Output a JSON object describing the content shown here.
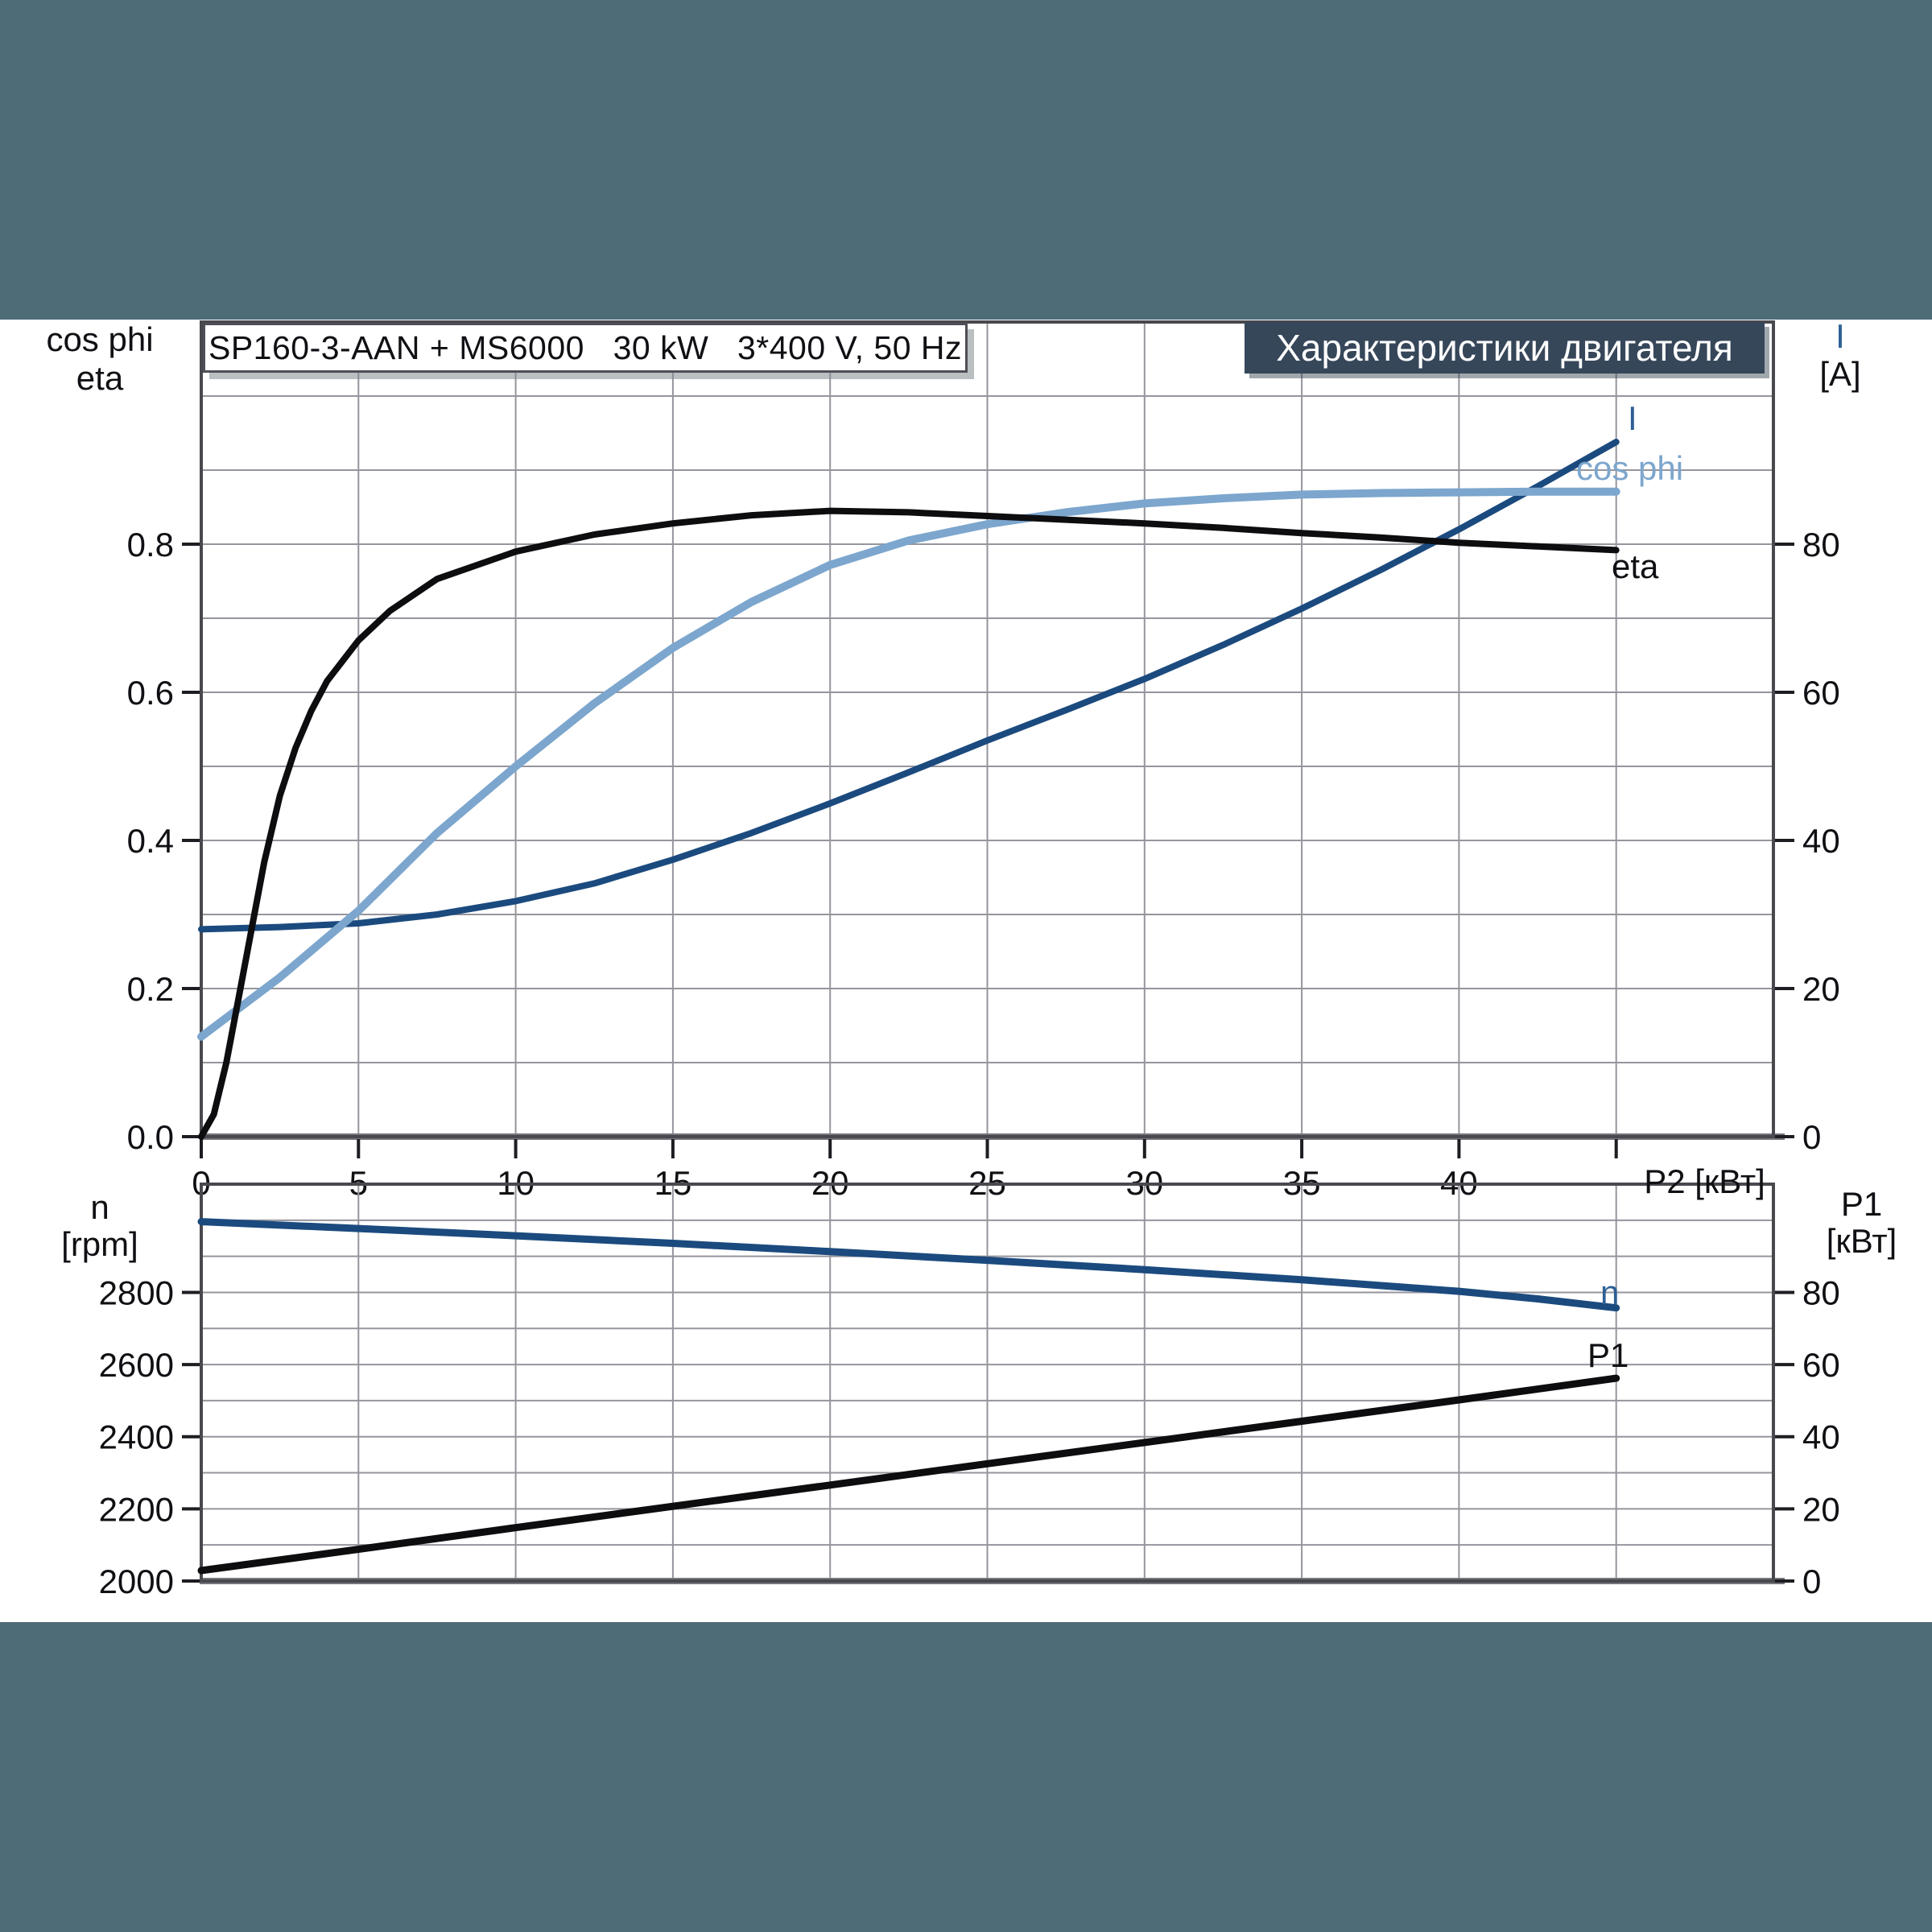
{
  "page": {
    "background": "#ffffff",
    "band_color": "#4e6c78"
  },
  "header": {
    "title": "Характеристики двигателя",
    "bg": "#37475a",
    "text_color": "#ffffff"
  },
  "title_box": {
    "text": "SP160-3-AAN + MS6000   30 kW   3*400 V, 50 Hz"
  },
  "chart_colors": {
    "grid": "#95959d",
    "border": "#48484f",
    "baseline": "#76767d",
    "tick": "#1d1d22",
    "navy": "#1b4a7e",
    "light_blue": "#7ca6cd",
    "black_curve": "#0d0d10",
    "blue_label": "#2e6096"
  },
  "chart_data": [
    {
      "type": "line",
      "title": "Motor characteristics: current, power factor and efficiency vs shaft power",
      "grid": true,
      "legend_position": "labels at right end of each curve",
      "x_axis": {
        "label": "P2 [кВт]",
        "min": 0,
        "max": 50,
        "grid_step": 5,
        "ticks": [
          {
            "v": 0,
            "label": "0"
          },
          {
            "v": 5,
            "label": "5"
          },
          {
            "v": 10,
            "label": "10"
          },
          {
            "v": 15,
            "label": "15"
          },
          {
            "v": 20,
            "label": "20"
          },
          {
            "v": 25,
            "label": "25"
          },
          {
            "v": 30,
            "label": "30"
          },
          {
            "v": 35,
            "label": "35"
          },
          {
            "v": 40,
            "label": "40"
          },
          {
            "v": 45,
            "label": ""
          }
        ]
      },
      "y_left": {
        "title_lines": [
          "cos phi",
          "eta"
        ],
        "min": 0,
        "max": 1.1,
        "grid_step": 0.1,
        "ticks": [
          {
            "v": 0,
            "label": "0.0"
          },
          {
            "v": 0.2,
            "label": "0.2"
          },
          {
            "v": 0.4,
            "label": "0.4"
          },
          {
            "v": 0.6,
            "label": "0.6"
          },
          {
            "v": 0.8,
            "label": "0.8"
          }
        ]
      },
      "y_right": {
        "title_lines": [
          "I",
          "[A]"
        ],
        "min": 0,
        "max": 110,
        "ticks": [
          {
            "v": 0,
            "label": "0"
          },
          {
            "v": 20,
            "label": "20"
          },
          {
            "v": 40,
            "label": "40"
          },
          {
            "v": 60,
            "label": "60"
          },
          {
            "v": 80,
            "label": "80"
          }
        ]
      },
      "series": [
        {
          "name": "I",
          "label": "I",
          "axis": "right",
          "color": "#1b4a7e",
          "line_width": 8,
          "x": [
            0,
            2.5,
            5,
            7.5,
            10,
            12.5,
            15,
            17.5,
            20,
            22.5,
            25,
            27.5,
            30,
            32.5,
            35,
            37.5,
            40,
            42.5,
            45
          ],
          "y": [
            28,
            28.3,
            28.8,
            30,
            31.8,
            34.2,
            37.4,
            41,
            45,
            49.2,
            53.5,
            57.6,
            61.8,
            66.4,
            71.3,
            76.5,
            82,
            87.8,
            93.8
          ]
        },
        {
          "name": "cos phi",
          "label": "cos phi",
          "axis": "left",
          "color": "#7ca6cd",
          "line_width": 10,
          "x": [
            0,
            2.5,
            5,
            7.5,
            10,
            12.5,
            15,
            17.5,
            20,
            22.5,
            25,
            27.5,
            30,
            32.5,
            35,
            37.5,
            40,
            42.5,
            45
          ],
          "y": [
            0.135,
            0.215,
            0.305,
            0.41,
            0.5,
            0.585,
            0.66,
            0.722,
            0.772,
            0.805,
            0.827,
            0.843,
            0.855,
            0.862,
            0.867,
            0.869,
            0.87,
            0.871,
            0.871
          ]
        },
        {
          "name": "eta",
          "label": "eta",
          "axis": "left",
          "color": "#0d0d10",
          "line_width": 8,
          "x": [
            0,
            0.4,
            0.8,
            1.2,
            1.6,
            2,
            2.5,
            3,
            3.5,
            4,
            5,
            6,
            7.5,
            10,
            12.5,
            15,
            17.5,
            20,
            22.5,
            25,
            27.5,
            30,
            32.5,
            35,
            37.5,
            40,
            42.5,
            45
          ],
          "y": [
            0,
            0.03,
            0.1,
            0.19,
            0.28,
            0.37,
            0.46,
            0.525,
            0.575,
            0.615,
            0.67,
            0.71,
            0.753,
            0.79,
            0.813,
            0.828,
            0.839,
            0.845,
            0.843,
            0.838,
            0.833,
            0.828,
            0.822,
            0.815,
            0.809,
            0.802,
            0.797,
            0.792
          ]
        }
      ]
    },
    {
      "type": "line",
      "title": "Motor speed and input power vs shaft power",
      "grid": true,
      "legend_position": "labels at right end of each curve",
      "x_axis": {
        "label": "",
        "min": 0,
        "max": 50,
        "grid_step": 5,
        "ticks": []
      },
      "y_left": {
        "title_lines": [
          "n",
          "[rpm]"
        ],
        "min": 2000,
        "max": 3100,
        "grid_step": 100,
        "ticks": [
          {
            "v": 2000,
            "label": "2000"
          },
          {
            "v": 2200,
            "label": "2200"
          },
          {
            "v": 2400,
            "label": "2400"
          },
          {
            "v": 2600,
            "label": "2600"
          },
          {
            "v": 2800,
            "label": "2800"
          }
        ]
      },
      "y_right": {
        "title_lines": [
          "P1",
          "[кВт]"
        ],
        "min": 0,
        "max": 110,
        "ticks": [
          {
            "v": 0,
            "label": "0"
          },
          {
            "v": 20,
            "label": "20"
          },
          {
            "v": 40,
            "label": "40"
          },
          {
            "v": 60,
            "label": "60"
          },
          {
            "v": 80,
            "label": "80"
          }
        ]
      },
      "series": [
        {
          "name": "n",
          "label": "n",
          "axis": "left",
          "color": "#1b4a7e",
          "line_width": 9,
          "x": [
            0,
            5,
            10,
            15,
            20,
            25,
            30,
            35,
            40,
            42.5,
            45
          ],
          "y": [
            2996,
            2977,
            2957,
            2936,
            2913,
            2889,
            2863,
            2835,
            2803,
            2782,
            2757
          ]
        },
        {
          "name": "P1",
          "label": "P1",
          "axis": "right",
          "color": "#0d0d10",
          "line_width": 9,
          "x": [
            0,
            5,
            10,
            15,
            20,
            25,
            30,
            35,
            40,
            45
          ],
          "y": [
            2.9,
            8.8,
            14.8,
            20.7,
            26.6,
            32.5,
            38.4,
            44.3,
            50.2,
            56.2
          ]
        }
      ]
    }
  ]
}
